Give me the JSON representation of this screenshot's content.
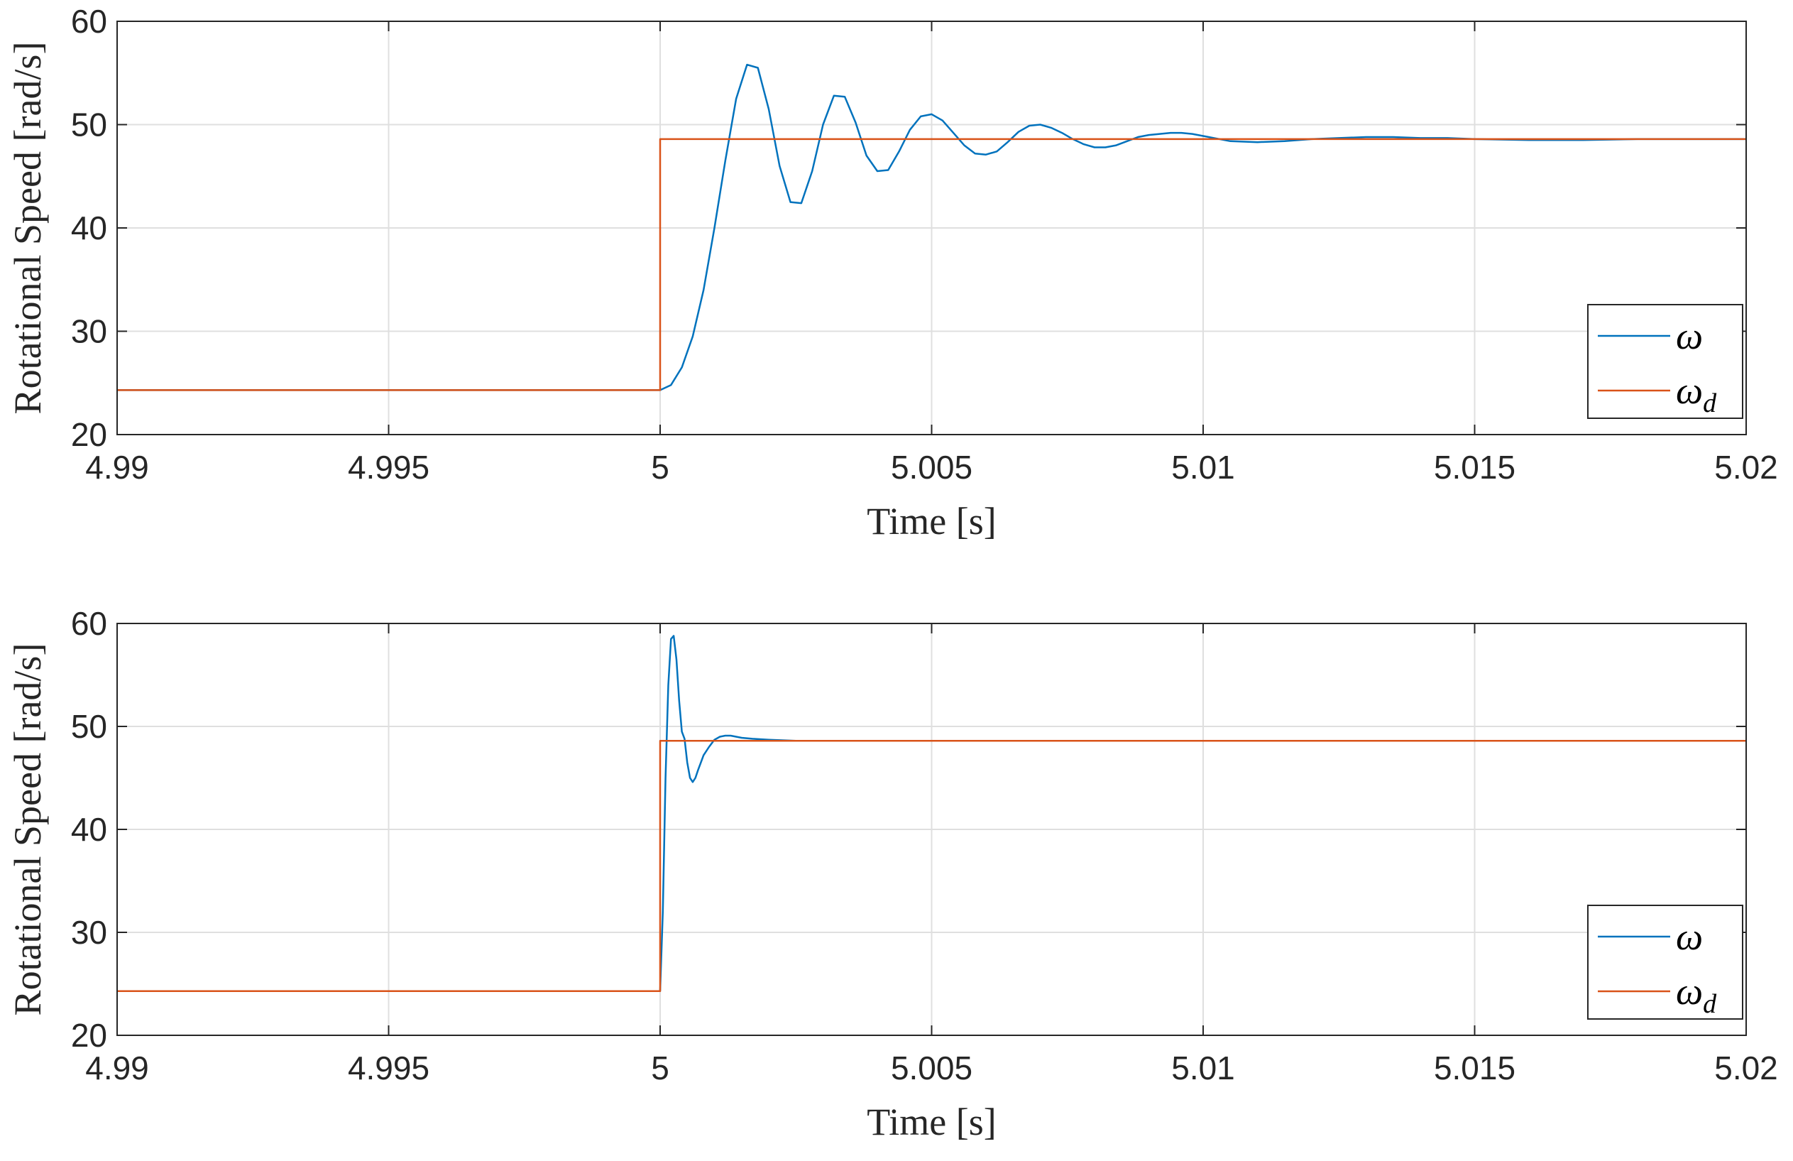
{
  "chart_data": [
    {
      "type": "line",
      "xlabel": "Time [s]",
      "ylabel": "Rotational Speed [rad/s]",
      "xlim": [
        4.99,
        5.02
      ],
      "ylim": [
        20,
        60
      ],
      "xticks": [
        "4.99",
        "4.995",
        "5",
        "5.005",
        "5.01",
        "5.015",
        "5.02"
      ],
      "yticks": [
        "20",
        "30",
        "40",
        "50",
        "60"
      ],
      "grid": true,
      "legend_position": "bottom-right",
      "series": [
        {
          "name": "ω",
          "color": "#0072BD",
          "x": [
            4.99,
            5.0,
            5.0002,
            5.0004,
            5.0006,
            5.0008,
            5.001,
            5.0012,
            5.0014,
            5.0016,
            5.0018,
            5.002,
            5.0022,
            5.0024,
            5.0026,
            5.0028,
            5.003,
            5.0032,
            5.0034,
            5.0036,
            5.0038,
            5.004,
            5.0042,
            5.0044,
            5.0046,
            5.0048,
            5.005,
            5.0052,
            5.0054,
            5.0056,
            5.0058,
            5.006,
            5.0062,
            5.0064,
            5.0066,
            5.0068,
            5.007,
            5.0072,
            5.0074,
            5.0076,
            5.0078,
            5.008,
            5.0082,
            5.0084,
            5.0086,
            5.0088,
            5.009,
            5.0092,
            5.0094,
            5.0096,
            5.0098,
            5.01,
            5.0105,
            5.011,
            5.0115,
            5.012,
            5.0125,
            5.013,
            5.0135,
            5.014,
            5.0145,
            5.015,
            5.016,
            5.017,
            5.018,
            5.019,
            5.02
          ],
          "y": [
            24.3,
            24.3,
            24.8,
            26.5,
            29.5,
            34.0,
            40.0,
            46.5,
            52.5,
            55.8,
            55.5,
            51.5,
            46.0,
            42.5,
            42.4,
            45.5,
            50.0,
            52.8,
            52.7,
            50.2,
            47.0,
            45.5,
            45.6,
            47.4,
            49.5,
            50.8,
            51.0,
            50.4,
            49.2,
            48.0,
            47.2,
            47.1,
            47.4,
            48.3,
            49.3,
            49.9,
            50.0,
            49.7,
            49.2,
            48.6,
            48.1,
            47.8,
            47.8,
            48.0,
            48.4,
            48.8,
            49.0,
            49.1,
            49.2,
            49.2,
            49.1,
            48.9,
            48.4,
            48.3,
            48.4,
            48.6,
            48.7,
            48.8,
            48.8,
            48.7,
            48.7,
            48.6,
            48.5,
            48.5,
            48.6,
            48.6,
            48.6
          ]
        },
        {
          "name": "ωd",
          "color": "#D95319",
          "x": [
            4.99,
            5.0,
            5.0,
            5.02
          ],
          "y": [
            24.3,
            24.3,
            48.6,
            48.6
          ]
        }
      ]
    },
    {
      "type": "line",
      "xlabel": "Time [s]",
      "ylabel": "Rotational Speed [rad/s]",
      "xlim": [
        4.99,
        5.02
      ],
      "ylim": [
        20,
        60
      ],
      "xticks": [
        "4.99",
        "4.995",
        "5",
        "5.005",
        "5.01",
        "5.015",
        "5.02"
      ],
      "yticks": [
        "20",
        "30",
        "40",
        "50",
        "60"
      ],
      "grid": true,
      "legend_position": "bottom-right",
      "series": [
        {
          "name": "ω",
          "color": "#0072BD",
          "x": [
            4.99,
            5.0,
            5.00005,
            5.0001,
            5.00015,
            5.0002,
            5.00025,
            5.0003,
            5.00035,
            5.0004,
            5.00045,
            5.0005,
            5.00055,
            5.0006,
            5.00065,
            5.0007,
            5.00075,
            5.0008,
            5.0009,
            5.001,
            5.0011,
            5.0012,
            5.0013,
            5.0015,
            5.0017,
            5.002,
            5.0025,
            5.003,
            5.004,
            5.005,
            5.01,
            5.015,
            5.02
          ],
          "y": [
            24.3,
            24.3,
            32.0,
            45.0,
            54.0,
            58.5,
            58.8,
            56.5,
            52.5,
            49.5,
            48.8,
            46.5,
            45.0,
            44.6,
            45.0,
            45.8,
            46.5,
            47.2,
            48.0,
            48.7,
            49.0,
            49.1,
            49.1,
            48.9,
            48.8,
            48.7,
            48.6,
            48.6,
            48.6,
            48.6,
            48.6,
            48.6,
            48.6
          ]
        },
        {
          "name": "ωd",
          "color": "#D95319",
          "x": [
            4.99,
            5.0,
            5.0,
            5.02
          ],
          "y": [
            24.3,
            24.3,
            48.6,
            48.6
          ]
        }
      ]
    }
  ]
}
